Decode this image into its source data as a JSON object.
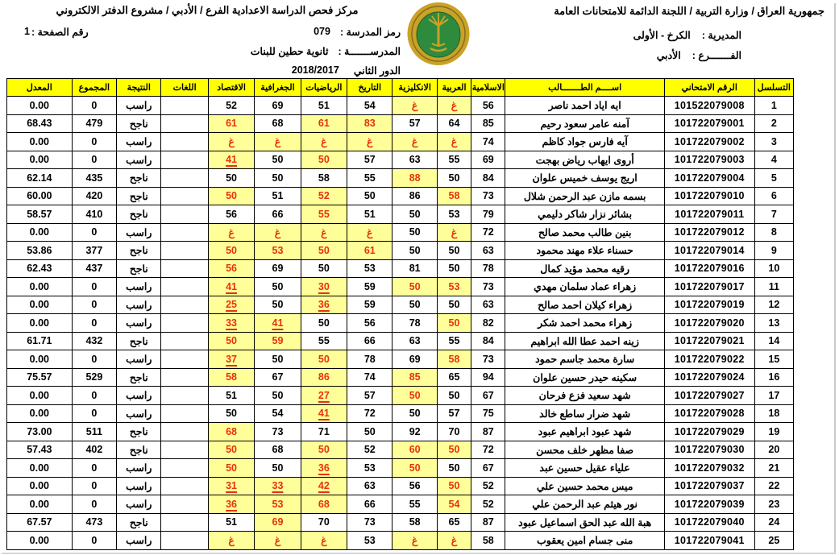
{
  "page": {
    "gov_header": "جمهورية العراق / وزارة التربية / اللجنة الدائمة للامتحانات العامة",
    "directorate_label": "المديرية :",
    "directorate_value": "الكرخ - الأولى",
    "branch_label": "الفـــــــرع :",
    "branch_value": "الأدبي",
    "center_title": "مركز فحص الدراسة الاعدادية الفرع / الأدبي / مشروع الدفتر الالكتروني",
    "school_code_label": "رمز المدرسة :",
    "school_code_value": "079",
    "page_number_label": "رقم الصفحة :",
    "page_number_value": "1",
    "school_label": "المدرســـــــة :",
    "school_value": "ثانوية حطين للبنات",
    "round_label": "الدور الثاني",
    "round_value": "2018/2017",
    "logo": "ministry-of-education-emblem"
  },
  "colors": {
    "header_bg": "#ffff00",
    "highlight_bg": "#ffff99",
    "alert_red": "#e8320e"
  },
  "table": {
    "columns": {
      "seq": "التسلسل",
      "exam": "الرقم الامتحاني",
      "name": "اســــم الطـــــــالب",
      "islamic": "الاسلامية",
      "arabic": "العربية",
      "english": "الانكليزية",
      "history": "التاريخ",
      "math": "الرياضيات",
      "geography": "الجغرافية",
      "economics": "الاقتصاد",
      "languages": "اللغات",
      "result": "النتيجة",
      "total": "المجموع",
      "avg": "المعدل"
    },
    "rows": [
      {
        "seq": "1",
        "exam": "101522079008",
        "name": "ايه اياد احمد ناصر",
        "islamic": "56",
        "arabic": {
          "v": "غ",
          "h": 1
        },
        "english": {
          "v": "غ",
          "h": 1
        },
        "history": "54",
        "math": "51",
        "geography": "69",
        "economics": "52",
        "languages": "",
        "result": "راسب",
        "total": "0",
        "avg": "0.00"
      },
      {
        "seq": "2",
        "exam": "101722079001",
        "name": "آمنه عامر سعود رحيم",
        "islamic": "85",
        "arabic": "64",
        "english": "57",
        "history": {
          "v": "83",
          "h": 1
        },
        "math": {
          "v": "61",
          "h": 1
        },
        "geography": "68",
        "economics": {
          "v": "61",
          "h": 1
        },
        "languages": "",
        "result": "ناجح",
        "total": "479",
        "avg": "68.43"
      },
      {
        "seq": "3",
        "exam": "101722079002",
        "name": "آيه فارس جواد كاظم",
        "islamic": "74",
        "arabic": {
          "v": "غ",
          "h": 1
        },
        "english": {
          "v": "غ",
          "h": 1
        },
        "history": {
          "v": "غ",
          "h": 1
        },
        "math": {
          "v": "غ",
          "h": 1
        },
        "geography": {
          "v": "غ",
          "h": 1
        },
        "economics": {
          "v": "غ",
          "h": 1
        },
        "languages": "",
        "result": "راسب",
        "total": "0",
        "avg": "0.00"
      },
      {
        "seq": "4",
        "exam": "101722079003",
        "name": "أروى ايهاب رياض بهجت",
        "islamic": "69",
        "arabic": "55",
        "english": "63",
        "history": "57",
        "math": {
          "v": "50",
          "h": 1
        },
        "geography": "50",
        "economics": {
          "v": "41",
          "h": 1,
          "u": 1
        },
        "languages": "",
        "result": "راسب",
        "total": "0",
        "avg": "0.00"
      },
      {
        "seq": "5",
        "exam": "101722079004",
        "name": "اريج يوسف خميس علوان",
        "islamic": "84",
        "arabic": "50",
        "english": {
          "v": "88",
          "h": 1
        },
        "history": "55",
        "math": "58",
        "geography": "50",
        "economics": "50",
        "languages": "",
        "result": "ناجح",
        "total": "435",
        "avg": "62.14"
      },
      {
        "seq": "6",
        "exam": "101722079010",
        "name": "بسمه مازن عبد الرحمن شلال",
        "islamic": "73",
        "arabic": {
          "v": "58",
          "h": 1
        },
        "english": "86",
        "history": "50",
        "math": {
          "v": "52",
          "h": 1
        },
        "geography": "51",
        "economics": {
          "v": "50",
          "h": 1
        },
        "languages": "",
        "result": "ناجح",
        "total": "420",
        "avg": "60.00"
      },
      {
        "seq": "7",
        "exam": "101722079011",
        "name": "بشائر نزار شاكر دليمي",
        "islamic": "79",
        "arabic": "53",
        "english": "50",
        "history": "51",
        "math": {
          "v": "55",
          "h": 1
        },
        "geography": "66",
        "economics": "56",
        "languages": "",
        "result": "ناجح",
        "total": "410",
        "avg": "58.57"
      },
      {
        "seq": "8",
        "exam": "101722079012",
        "name": "بنين طالب محمد صالح",
        "islamic": "72",
        "arabic": {
          "v": "غ",
          "h": 1
        },
        "english": "50",
        "history": {
          "v": "غ",
          "h": 1
        },
        "math": {
          "v": "غ",
          "h": 1
        },
        "geography": {
          "v": "غ",
          "h": 1
        },
        "economics": {
          "v": "غ",
          "h": 1
        },
        "languages": "",
        "result": "راسب",
        "total": "0",
        "avg": "0.00"
      },
      {
        "seq": "9",
        "exam": "101722079014",
        "name": "حسناء علاء مهند محمود",
        "islamic": "63",
        "arabic": "50",
        "english": "50",
        "history": {
          "v": "61",
          "h": 1
        },
        "math": {
          "v": "50",
          "h": 1
        },
        "geography": {
          "v": "53",
          "h": 1
        },
        "economics": {
          "v": "50",
          "h": 1
        },
        "languages": "",
        "result": "ناجح",
        "total": "377",
        "avg": "53.86"
      },
      {
        "seq": "10",
        "exam": "101722079016",
        "name": "رقيه محمد مؤيد كمال",
        "islamic": "78",
        "arabic": "50",
        "english": "81",
        "history": "53",
        "math": "50",
        "geography": "69",
        "economics": {
          "v": "56",
          "h": 1
        },
        "languages": "",
        "result": "ناجح",
        "total": "437",
        "avg": "62.43"
      },
      {
        "seq": "11",
        "exam": "101722079017",
        "name": "زهراء عماد سلمان مهدي",
        "islamic": "73",
        "arabic": {
          "v": "53",
          "h": 1
        },
        "english": {
          "v": "50",
          "h": 1
        },
        "history": "59",
        "math": {
          "v": "30",
          "h": 1,
          "u": 1
        },
        "geography": "50",
        "economics": {
          "v": "41",
          "h": 1,
          "u": 1
        },
        "languages": "",
        "result": "راسب",
        "total": "0",
        "avg": "0.00"
      },
      {
        "seq": "12",
        "exam": "101722079019",
        "name": "زهراء كيلان احمد صالح",
        "islamic": "63",
        "arabic": "50",
        "english": "50",
        "history": "59",
        "math": {
          "v": "36",
          "h": 1,
          "u": 1
        },
        "geography": "50",
        "economics": {
          "v": "25",
          "h": 1,
          "u": 1
        },
        "languages": "",
        "result": "راسب",
        "total": "0",
        "avg": "0.00"
      },
      {
        "seq": "13",
        "exam": "101722079020",
        "name": "زهراء محمد احمد شكر",
        "islamic": "82",
        "arabic": {
          "v": "50",
          "h": 1
        },
        "english": "78",
        "history": "56",
        "math": "50",
        "geography": {
          "v": "41",
          "h": 1,
          "u": 1
        },
        "economics": {
          "v": "33",
          "h": 1,
          "u": 1
        },
        "languages": "",
        "result": "راسب",
        "total": "0",
        "avg": "0.00"
      },
      {
        "seq": "14",
        "exam": "101722079021",
        "name": "زينه احمد عطا الله ابراهيم",
        "islamic": "84",
        "arabic": "55",
        "english": "63",
        "history": "66",
        "math": "55",
        "geography": {
          "v": "59",
          "h": 1
        },
        "economics": {
          "v": "50",
          "h": 1
        },
        "languages": "",
        "result": "ناجح",
        "total": "432",
        "avg": "61.71"
      },
      {
        "seq": "15",
        "exam": "101722079022",
        "name": "سارة محمد جاسم حمود",
        "islamic": "73",
        "arabic": {
          "v": "58",
          "h": 1
        },
        "english": "69",
        "history": "78",
        "math": {
          "v": "50",
          "h": 1
        },
        "geography": "50",
        "economics": {
          "v": "37",
          "h": 1,
          "u": 1
        },
        "languages": "",
        "result": "راسب",
        "total": "0",
        "avg": "0.00"
      },
      {
        "seq": "16",
        "exam": "101722079024",
        "name": "سكينه حيدر حسين علوان",
        "islamic": "94",
        "arabic": "65",
        "english": {
          "v": "85",
          "h": 1
        },
        "history": "74",
        "math": {
          "v": "86",
          "h": 1
        },
        "geography": "67",
        "economics": {
          "v": "58",
          "h": 1
        },
        "languages": "",
        "result": "ناجح",
        "total": "529",
        "avg": "75.57"
      },
      {
        "seq": "17",
        "exam": "101722079027",
        "name": "شهد سعيد فزع فرحان",
        "islamic": "67",
        "arabic": "50",
        "english": {
          "v": "50",
          "h": 1
        },
        "history": "57",
        "math": {
          "v": "27",
          "h": 1,
          "u": 1
        },
        "geography": "50",
        "economics": "51",
        "languages": "",
        "result": "راسب",
        "total": "0",
        "avg": "0.00"
      },
      {
        "seq": "18",
        "exam": "101722079028",
        "name": "شهد ضرار ساطع خالد",
        "islamic": "75",
        "arabic": "57",
        "english": "50",
        "history": "72",
        "math": {
          "v": "41",
          "h": 1,
          "u": 1
        },
        "geography": "54",
        "economics": "50",
        "languages": "",
        "result": "راسب",
        "total": "0",
        "avg": "0.00"
      },
      {
        "seq": "19",
        "exam": "101722079029",
        "name": "شهد عبود ابراهيم عبود",
        "islamic": "87",
        "arabic": "70",
        "english": "92",
        "history": "50",
        "math": "71",
        "geography": "73",
        "economics": {
          "v": "68",
          "h": 1
        },
        "languages": "",
        "result": "ناجح",
        "total": "511",
        "avg": "73.00"
      },
      {
        "seq": "20",
        "exam": "101722079030",
        "name": "صفا مظهر خلف محسن",
        "islamic": "72",
        "arabic": {
          "v": "50",
          "h": 1
        },
        "english": {
          "v": "60",
          "h": 1
        },
        "history": "52",
        "math": {
          "v": "50",
          "h": 1
        },
        "geography": "68",
        "economics": {
          "v": "50",
          "h": 1
        },
        "languages": "",
        "result": "ناجح",
        "total": "402",
        "avg": "57.43"
      },
      {
        "seq": "21",
        "exam": "101722079032",
        "name": "علياء عقيل حسين عبد",
        "islamic": "67",
        "arabic": "50",
        "english": {
          "v": "50",
          "h": 1
        },
        "history": "53",
        "math": {
          "v": "36",
          "h": 1,
          "u": 1
        },
        "geography": "50",
        "economics": {
          "v": "50",
          "h": 1
        },
        "languages": "",
        "result": "راسب",
        "total": "0",
        "avg": "0.00"
      },
      {
        "seq": "22",
        "exam": "101722079037",
        "name": "ميس محمد حسين علي",
        "islamic": "52",
        "arabic": {
          "v": "50",
          "h": 1
        },
        "english": "56",
        "history": "63",
        "math": {
          "v": "42",
          "h": 1,
          "u": 1
        },
        "geography": {
          "v": "33",
          "h": 1,
          "u": 1
        },
        "economics": {
          "v": "31",
          "h": 1,
          "u": 1
        },
        "languages": "",
        "result": "راسب",
        "total": "0",
        "avg": "0.00"
      },
      {
        "seq": "23",
        "exam": "101722079039",
        "name": "نور هيثم عبد الرحمن علي",
        "islamic": "52",
        "arabic": {
          "v": "54",
          "h": 1
        },
        "english": "55",
        "history": "66",
        "math": {
          "v": "68",
          "h": 1
        },
        "geography": {
          "v": "53",
          "h": 1
        },
        "economics": {
          "v": "36",
          "h": 1,
          "u": 1
        },
        "languages": "",
        "result": "راسب",
        "total": "0",
        "avg": "0.00"
      },
      {
        "seq": "24",
        "exam": "101722079040",
        "name": "هبة الله عبد الحق اسماعيل عبود",
        "islamic": "87",
        "arabic": "65",
        "english": "58",
        "history": "73",
        "math": "70",
        "geography": {
          "v": "69",
          "h": 1
        },
        "economics": "51",
        "languages": "",
        "result": "ناجح",
        "total": "473",
        "avg": "67.57"
      },
      {
        "seq": "25",
        "exam": "101722079041",
        "name": "منى جسام امين يعقوب",
        "islamic": "58",
        "arabic": {
          "v": "غ",
          "h": 1
        },
        "english": {
          "v": "غ",
          "h": 1
        },
        "history": "53",
        "math": {
          "v": "غ",
          "h": 1
        },
        "geography": {
          "v": "غ",
          "h": 1
        },
        "economics": {
          "v": "غ",
          "h": 1
        },
        "languages": "",
        "result": "راسب",
        "total": "0",
        "avg": "0.00"
      }
    ]
  }
}
